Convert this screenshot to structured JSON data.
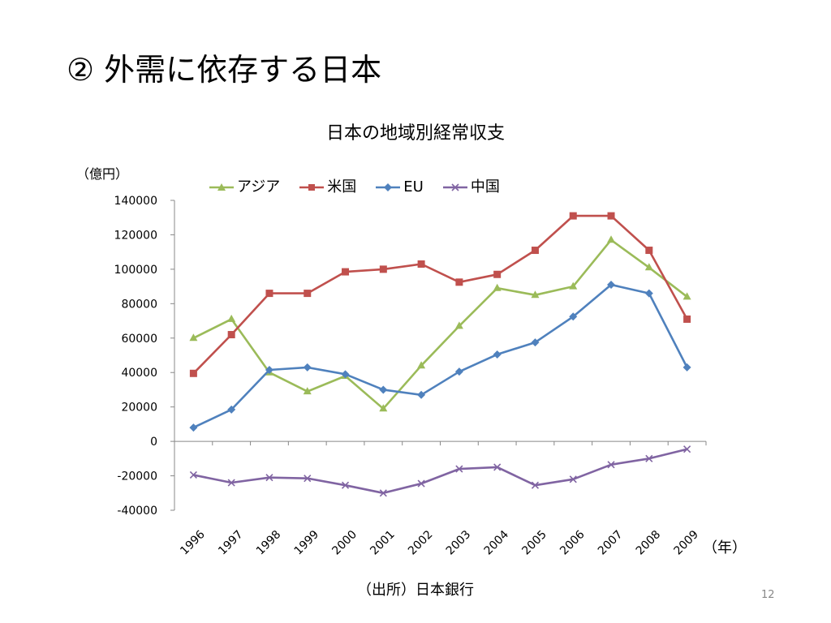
{
  "slide": {
    "title": "② 外需に依存する日本",
    "unit_label": "（億円）",
    "x_unit_label": "（年）",
    "source": "（出所）日本銀行",
    "page_number": "12"
  },
  "chart_data": {
    "type": "line",
    "title": "日本の地域別経常収支",
    "xlabel": "",
    "ylabel": "",
    "categories": [
      "1996",
      "1997",
      "1998",
      "1999",
      "2000",
      "2001",
      "2002",
      "2003",
      "2004",
      "2005",
      "2006",
      "2007",
      "2008",
      "2009"
    ],
    "ylim": [
      -40000,
      140000
    ],
    "yticks": [
      140000,
      120000,
      100000,
      80000,
      60000,
      40000,
      20000,
      0,
      -20000,
      -40000
    ],
    "grid": false,
    "legend_position": "top",
    "series": [
      {
        "name": "アジア",
        "color": "#9BBB59",
        "marker": "triangle",
        "values": [
          60000,
          71000,
          40000,
          29000,
          38000,
          19000,
          44000,
          67000,
          89000,
          85000,
          90000,
          117000,
          101000,
          84000
        ]
      },
      {
        "name": "米国",
        "color": "#C0504D",
        "marker": "square",
        "values": [
          39500,
          62000,
          86000,
          86000,
          98500,
          100000,
          103000,
          92500,
          97000,
          111000,
          131000,
          131000,
          111000,
          71000
        ]
      },
      {
        "name": "EU",
        "color": "#4F81BD",
        "marker": "diamond",
        "values": [
          8000,
          18500,
          41500,
          43000,
          39000,
          30000,
          27000,
          40500,
          50500,
          57500,
          72500,
          91000,
          86000,
          43000
        ]
      },
      {
        "name": "中国",
        "color": "#8064A2",
        "marker": "x",
        "values": [
          -19500,
          -24000,
          -21000,
          -21500,
          -25500,
          -30000,
          -24500,
          -16000,
          -15000,
          -25500,
          -22000,
          -13500,
          -10000,
          -4500
        ]
      }
    ]
  }
}
